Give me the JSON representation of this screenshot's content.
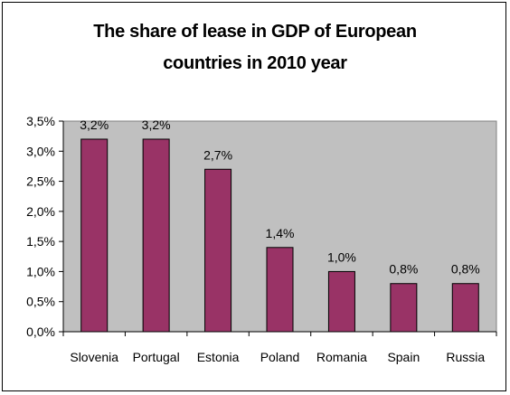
{
  "chart_data": {
    "type": "bar",
    "title": [
      "The share of lease in GDP of European",
      "countries in 2010 year"
    ],
    "categories": [
      "Slovenia",
      "Portugal",
      "Estonia",
      "Poland",
      "Romania",
      "Spain",
      "Russia"
    ],
    "values": [
      3.2,
      3.2,
      2.7,
      1.4,
      1.0,
      0.8,
      0.8
    ],
    "value_labels": [
      "3,2%",
      "3,2%",
      "2,7%",
      "1,4%",
      "1,0%",
      "0,8%",
      "0,8%"
    ],
    "xlabel": "",
    "ylabel": "",
    "ylim": [
      0,
      3.5
    ],
    "yticks": [
      0,
      0.5,
      1.0,
      1.5,
      2.0,
      2.5,
      3.0,
      3.5
    ],
    "ytick_labels": [
      "0,0%",
      "0,5%",
      "1,0%",
      "1,5%",
      "2,0%",
      "2,5%",
      "3,0%",
      "3,5%"
    ],
    "grid": false,
    "legend": "none",
    "colors": {
      "bar": "#993366",
      "plot_background": "#c0c0c0",
      "axis": "#000000"
    }
  }
}
